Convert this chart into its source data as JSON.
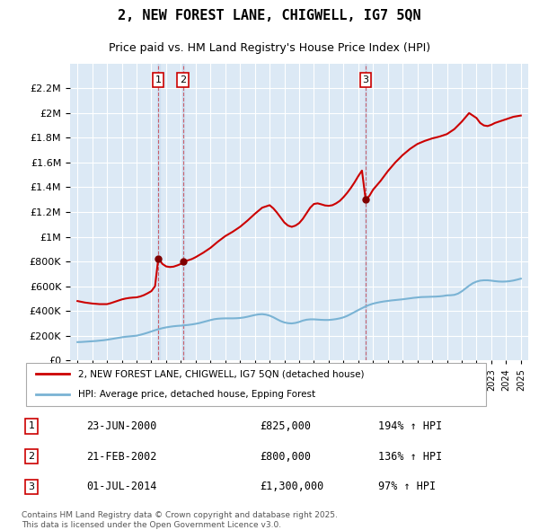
{
  "title": "2, NEW FOREST LANE, CHIGWELL, IG7 5QN",
  "subtitle": "Price paid vs. HM Land Registry's House Price Index (HPI)",
  "legend_line1": "2, NEW FOREST LANE, CHIGWELL, IG7 5QN (detached house)",
  "legend_line2": "HPI: Average price, detached house, Epping Forest",
  "footer": "Contains HM Land Registry data © Crown copyright and database right 2025.\nThis data is licensed under the Open Government Licence v3.0.",
  "transactions": [
    {
      "num": 1,
      "date_label": "23-JUN-2000",
      "date_x": 2000.47,
      "price": 825000,
      "pct": "194%",
      "dir": "↑"
    },
    {
      "num": 2,
      "date_label": "21-FEB-2002",
      "date_x": 2002.13,
      "price": 800000,
      "pct": "136%",
      "dir": "↑"
    },
    {
      "num": 3,
      "date_label": "01-JUL-2014",
      "date_x": 2014.5,
      "price": 1300000,
      "pct": "97%",
      "dir": "↑"
    }
  ],
  "ylim": [
    0,
    2400000
  ],
  "yticks": [
    0,
    200000,
    400000,
    600000,
    800000,
    1000000,
    1200000,
    1400000,
    1600000,
    1800000,
    2000000,
    2200000
  ],
  "xlim": [
    1994.5,
    2025.5
  ],
  "background_color": "#dce9f5",
  "plot_bg": "#dce9f5",
  "grid_color": "#ffffff",
  "red_line_color": "#cc0000",
  "blue_line_color": "#7ab3d4",
  "hpi_years": [
    1995,
    1995.25,
    1995.5,
    1995.75,
    1996,
    1996.25,
    1996.5,
    1996.75,
    1997,
    1997.25,
    1997.5,
    1997.75,
    1998,
    1998.25,
    1998.5,
    1998.75,
    1999,
    1999.25,
    1999.5,
    1999.75,
    2000,
    2000.25,
    2000.5,
    2000.75,
    2001,
    2001.25,
    2001.5,
    2001.75,
    2002,
    2002.25,
    2002.5,
    2002.75,
    2003,
    2003.25,
    2003.5,
    2003.75,
    2004,
    2004.25,
    2004.5,
    2004.75,
    2005,
    2005.25,
    2005.5,
    2005.75,
    2006,
    2006.25,
    2006.5,
    2006.75,
    2007,
    2007.25,
    2007.5,
    2007.75,
    2008,
    2008.25,
    2008.5,
    2008.75,
    2009,
    2009.25,
    2009.5,
    2009.75,
    2010,
    2010.25,
    2010.5,
    2010.75,
    2011,
    2011.25,
    2011.5,
    2011.75,
    2012,
    2012.25,
    2012.5,
    2012.75,
    2013,
    2013.25,
    2013.5,
    2013.75,
    2014,
    2014.25,
    2014.5,
    2014.75,
    2015,
    2015.25,
    2015.5,
    2015.75,
    2016,
    2016.25,
    2016.5,
    2016.75,
    2017,
    2017.25,
    2017.5,
    2017.75,
    2018,
    2018.25,
    2018.5,
    2018.75,
    2019,
    2019.25,
    2019.5,
    2019.75,
    2020,
    2020.25,
    2020.5,
    2020.75,
    2021,
    2021.25,
    2021.5,
    2021.75,
    2022,
    2022.25,
    2022.5,
    2022.75,
    2023,
    2023.25,
    2023.5,
    2023.75,
    2024,
    2024.25,
    2024.5,
    2024.75,
    2025
  ],
  "hpi_values": [
    148000,
    149000,
    151000,
    153000,
    155000,
    157000,
    160000,
    163000,
    167000,
    172000,
    177000,
    182000,
    187000,
    191000,
    194000,
    197000,
    200000,
    207000,
    215000,
    224000,
    234000,
    244000,
    253000,
    261000,
    267000,
    272000,
    276000,
    279000,
    281000,
    284000,
    287000,
    291000,
    296000,
    302000,
    310000,
    318000,
    326000,
    333000,
    337000,
    339000,
    340000,
    340000,
    340000,
    341000,
    343000,
    347000,
    353000,
    360000,
    367000,
    372000,
    374000,
    370000,
    362000,
    349000,
    333000,
    318000,
    307000,
    301000,
    299000,
    303000,
    311000,
    322000,
    329000,
    332000,
    332000,
    330000,
    328000,
    327000,
    327000,
    330000,
    334000,
    340000,
    348000,
    360000,
    375000,
    391000,
    407000,
    422000,
    437000,
    449000,
    459000,
    466000,
    472000,
    477000,
    481000,
    485000,
    488000,
    491000,
    494000,
    498000,
    502000,
    506000,
    509000,
    512000,
    513000,
    514000,
    515000,
    516000,
    518000,
    521000,
    526000,
    527000,
    530000,
    540000,
    558000,
    581000,
    604000,
    624000,
    637000,
    645000,
    648000,
    648000,
    645000,
    641000,
    638000,
    637000,
    638000,
    641000,
    646000,
    653000,
    661000
  ],
  "price_years": [
    1995,
    1995.5,
    1996,
    1996.5,
    1997,
    1997.25,
    1997.5,
    1997.75,
    1998,
    1998.25,
    1998.5,
    1998.75,
    1999,
    1999.25,
    1999.5,
    1999.75,
    2000,
    2000.25,
    2000.47,
    2000.75,
    2001,
    2001.25,
    2001.5,
    2001.75,
    2002,
    2002.13,
    2002.5,
    2002.75,
    2003,
    2003.5,
    2004,
    2004.5,
    2005,
    2005.5,
    2006,
    2006.5,
    2007,
    2007.5,
    2008,
    2008.25,
    2008.5,
    2008.75,
    2009,
    2009.25,
    2009.5,
    2009.75,
    2010,
    2010.25,
    2010.5,
    2010.75,
    2011,
    2011.25,
    2011.5,
    2011.75,
    2012,
    2012.25,
    2012.5,
    2012.75,
    2013,
    2013.25,
    2013.5,
    2013.75,
    2014,
    2014.25,
    2014.5,
    2014.75,
    2015,
    2015.5,
    2016,
    2016.5,
    2017,
    2017.5,
    2018,
    2018.5,
    2019,
    2019.5,
    2020,
    2020.5,
    2021,
    2021.5,
    2022,
    2022.25,
    2022.5,
    2022.75,
    2023,
    2023.25,
    2023.5,
    2023.75,
    2024,
    2024.25,
    2024.5,
    2024.75,
    2025
  ],
  "price_values": [
    480000,
    468000,
    460000,
    455000,
    455000,
    463000,
    473000,
    483000,
    493000,
    500000,
    505000,
    508000,
    510000,
    517000,
    528000,
    543000,
    560000,
    600000,
    825000,
    780000,
    760000,
    755000,
    758000,
    768000,
    780000,
    800000,
    810000,
    820000,
    835000,
    870000,
    910000,
    960000,
    1005000,
    1040000,
    1080000,
    1130000,
    1185000,
    1235000,
    1255000,
    1230000,
    1195000,
    1155000,
    1115000,
    1090000,
    1080000,
    1090000,
    1110000,
    1145000,
    1190000,
    1235000,
    1265000,
    1270000,
    1262000,
    1253000,
    1250000,
    1255000,
    1270000,
    1290000,
    1320000,
    1355000,
    1395000,
    1440000,
    1490000,
    1535000,
    1300000,
    1330000,
    1380000,
    1450000,
    1530000,
    1600000,
    1660000,
    1710000,
    1750000,
    1775000,
    1795000,
    1810000,
    1830000,
    1870000,
    1930000,
    2000000,
    1960000,
    1920000,
    1900000,
    1895000,
    1905000,
    1920000,
    1930000,
    1940000,
    1950000,
    1960000,
    1970000,
    1975000,
    1980000
  ]
}
